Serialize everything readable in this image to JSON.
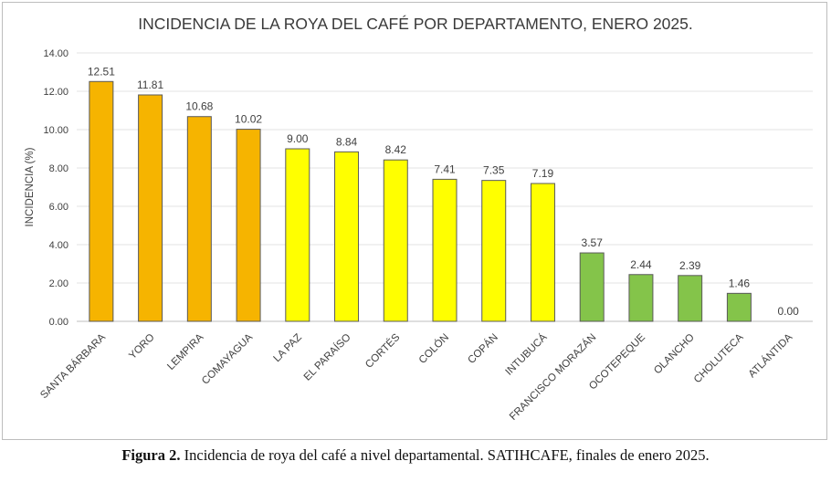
{
  "chart_data": {
    "type": "bar",
    "title": "INCIDENCIA DE LA ROYA DEL CAFÉ POR DEPARTAMENTO, ENERO 2025.",
    "xlabel": "",
    "ylabel": "INCIDENCIA (%)",
    "ylim": [
      0,
      14
    ],
    "yticks": [
      "0.00",
      "2.00",
      "4.00",
      "6.00",
      "8.00",
      "10.00",
      "12.00",
      "14.00"
    ],
    "grid": true,
    "legend": "none",
    "categories": [
      "SANTA BÁRBARA",
      "YORO",
      "LEMPIRA",
      "COMAYAGUA",
      "LA PAZ",
      "EL PARAÍSO",
      "CORTÉS",
      "COLÓN",
      "COPÁN",
      "INTUBUCÁ",
      "FRANCISCO MORAZÁN",
      "OCOTEPEQUE",
      "OLANCHO",
      "CHOLUTECA",
      "ATLÁNTIDA"
    ],
    "values": [
      12.51,
      11.81,
      10.68,
      10.02,
      9.0,
      8.84,
      8.42,
      7.41,
      7.35,
      7.19,
      3.57,
      2.44,
      2.39,
      1.46,
      0.0
    ],
    "value_labels": [
      "12.51",
      "11.81",
      "10.68",
      "10.02",
      "9.00",
      "8.84",
      "8.42",
      "7.41",
      "7.35",
      "7.19",
      "3.57",
      "2.44",
      "2.39",
      "1.46",
      "0.00"
    ],
    "bar_colors": [
      "#f6b400",
      "#f6b400",
      "#f6b400",
      "#f6b400",
      "#ffff00",
      "#ffff00",
      "#ffff00",
      "#ffff00",
      "#ffff00",
      "#ffff00",
      "#84c44a",
      "#84c44a",
      "#84c44a",
      "#84c44a",
      "#84c44a"
    ]
  },
  "caption": {
    "label": "Figura 2.",
    "text": " Incidencia de roya del café a nivel departamental. SATIHCAFE, finales de enero 2025."
  }
}
